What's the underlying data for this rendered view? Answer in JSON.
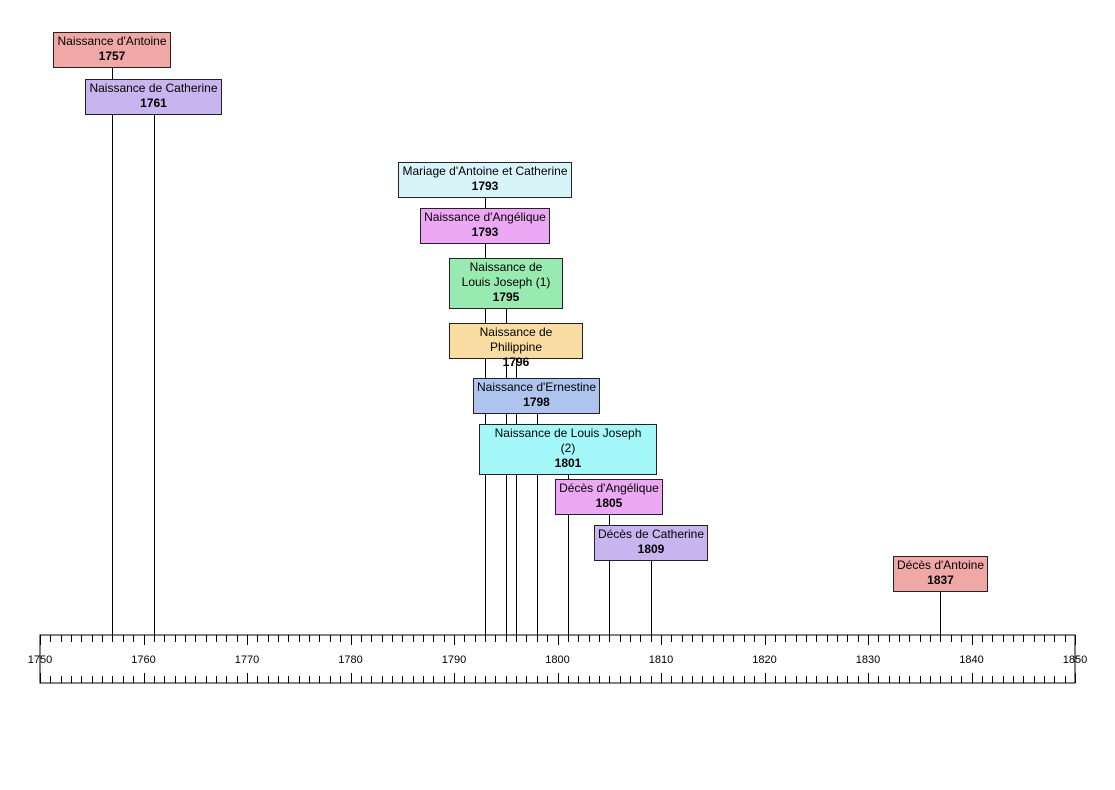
{
  "axis": {
    "start": 1750,
    "end": 1850,
    "labels": [
      "1750",
      "1760",
      "1770",
      "1780",
      "1790",
      "1800",
      "1810",
      "1820",
      "1830",
      "1840",
      "1850"
    ]
  },
  "events": [
    {
      "title": "Naissance d'Antoine",
      "year": "1757",
      "value": 1757,
      "color": "#f0a8a6"
    },
    {
      "title": "Naissance de Catherine",
      "year": "1761",
      "value": 1761,
      "color": "#c8b4ee"
    },
    {
      "title": "Mariage d'Antoine et Catherine",
      "year": "1793",
      "value": 1793,
      "color": "#d8f4f8"
    },
    {
      "title": "Naissance d'Angélique",
      "year": "1793",
      "value": 1793,
      "color": "#eca8f4"
    },
    {
      "title": "Naissance de\nLouis Joseph (1)",
      "year": "1795",
      "value": 1795,
      "color": "#98eab0"
    },
    {
      "title": "Naissance de Philippine",
      "year": "1796",
      "value": 1796,
      "color": "#f8dca2"
    },
    {
      "title": "Naissance d'Ernestine",
      "year": "1798",
      "value": 1798,
      "color": "#aec4ee"
    },
    {
      "title": "Naissance de Louis Joseph\n(2)",
      "year": "1801",
      "value": 1801,
      "color": "#a4f8fa"
    },
    {
      "title": "Décès d'Angélique",
      "year": "1805",
      "value": 1805,
      "color": "#eca8f4"
    },
    {
      "title": "Décès de Catherine",
      "year": "1809",
      "value": 1809,
      "color": "#c8b4ee"
    },
    {
      "title": "Décès d'Antoine",
      "year": "1837",
      "value": 1837,
      "color": "#f0a8a6"
    }
  ]
}
